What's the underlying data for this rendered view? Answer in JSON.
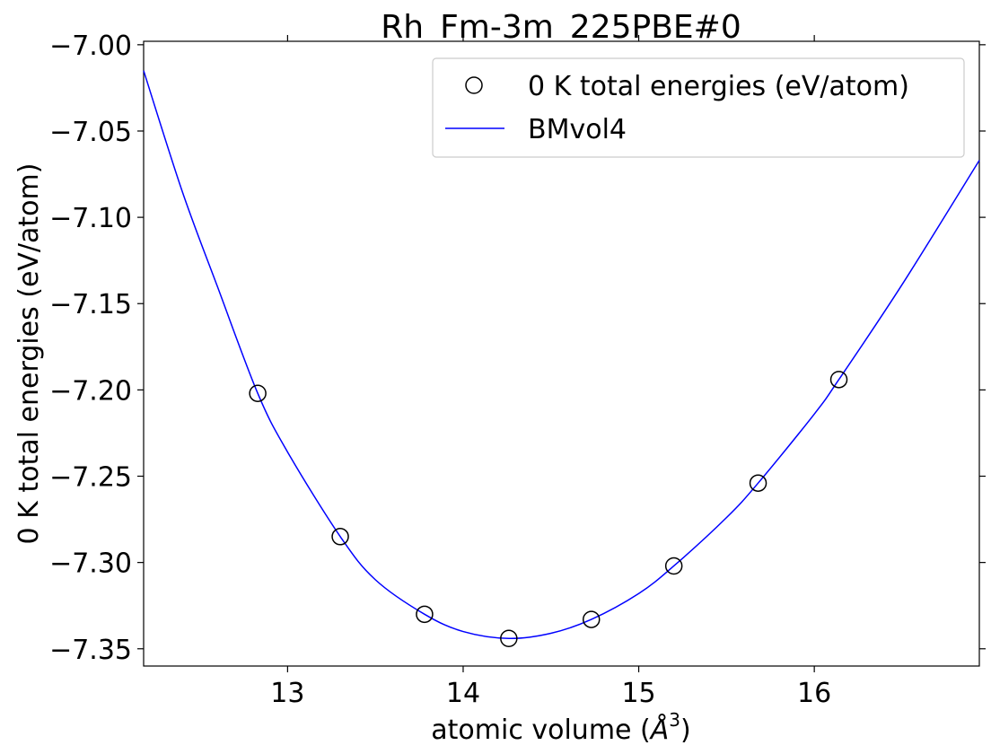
{
  "chart_data": {
    "type": "scatter",
    "title": "Rh_Fm-3m_225PBE#0",
    "xlabel": "atomic volume (",
    "xlabel_unit_base": "Å",
    "xlabel_unit_exp": "3",
    "xlabel_close": ")",
    "ylabel": "0 K total energies (eV/atom)",
    "xlim": [
      12.18,
      16.94
    ],
    "ylim": [
      -7.36,
      -6.998
    ],
    "xticks": [
      13,
      14,
      15,
      16
    ],
    "xtick_labels": [
      "13",
      "14",
      "15",
      "16"
    ],
    "yticks": [
      -7.35,
      -7.3,
      -7.25,
      -7.2,
      -7.15,
      -7.1,
      -7.05,
      -7.0
    ],
    "ytick_labels": [
      "−7.35",
      "−7.30",
      "−7.25",
      "−7.20",
      "−7.15",
      "−7.10",
      "−7.05",
      "−7.00"
    ],
    "grid": false,
    "legend_position": "top-right",
    "series": [
      {
        "name": "0 K total energies (eV/atom)",
        "kind": "scatter",
        "marker": "open-circle",
        "color": "#000000",
        "x": [
          12.83,
          13.3,
          13.78,
          14.26,
          14.73,
          15.2,
          15.68,
          16.14
        ],
        "y": [
          -7.202,
          -7.285,
          -7.33,
          -7.344,
          -7.333,
          -7.302,
          -7.254,
          -7.194
        ]
      },
      {
        "name": "BMvol4",
        "kind": "line",
        "color": "#0000ff",
        "x": [
          12.18,
          12.4,
          12.6,
          12.83,
          13.0,
          13.3,
          13.5,
          13.78,
          14.0,
          14.26,
          14.5,
          14.73,
          15.0,
          15.2,
          15.5,
          15.68,
          16.0,
          16.14,
          16.5,
          16.94
        ],
        "y": [
          -7.015,
          -7.085,
          -7.14,
          -7.202,
          -7.236,
          -7.285,
          -7.31,
          -7.33,
          -7.34,
          -7.344,
          -7.341,
          -7.333,
          -7.318,
          -7.302,
          -7.274,
          -7.254,
          -7.214,
          -7.194,
          -7.139,
          -7.067
        ]
      }
    ]
  }
}
